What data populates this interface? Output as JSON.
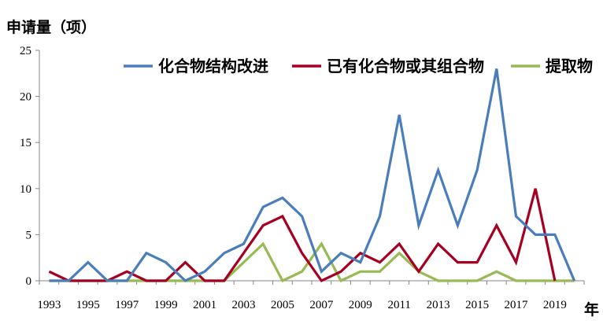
{
  "chart_data": {
    "type": "line",
    "ylabel": "申请量（项）",
    "xlabel": "年",
    "ylim": [
      0,
      25
    ],
    "yticks": [
      0,
      5,
      10,
      15,
      20,
      25
    ],
    "x": [
      1993,
      1994,
      1995,
      1996,
      1997,
      1998,
      1999,
      2000,
      2001,
      2002,
      2003,
      2004,
      2005,
      2006,
      2007,
      2008,
      2009,
      2010,
      2011,
      2012,
      2013,
      2014,
      2015,
      2016,
      2017,
      2018,
      2019,
      2020
    ],
    "x_tick_labels": [
      "1993",
      "1995",
      "1997",
      "1999",
      "2001",
      "2003",
      "2005",
      "2007",
      "2009",
      "2011",
      "2013",
      "2015",
      "2017",
      "2019"
    ],
    "legend_position": "top-right",
    "grid": false,
    "series": [
      {
        "name": "化合物结构改进",
        "color": "#4A7EBB",
        "values": [
          0,
          0,
          2,
          0,
          0,
          3,
          2,
          0,
          1,
          3,
          4,
          8,
          9,
          7,
          1,
          3,
          2,
          7,
          18,
          6,
          12,
          6,
          12,
          23,
          7,
          5,
          5,
          0
        ]
      },
      {
        "name": "已有化合物或其组合物",
        "color": "#A50021",
        "values": [
          1,
          0,
          0,
          0,
          1,
          0,
          0,
          2,
          0,
          0,
          3,
          6,
          7,
          3,
          0,
          1,
          3,
          2,
          4,
          1,
          4,
          2,
          2,
          6,
          2,
          10,
          0,
          null
        ]
      },
      {
        "name": "提取物",
        "color": "#98B954",
        "values": [
          0,
          0,
          0,
          0,
          0,
          0,
          0,
          0,
          0,
          0,
          2,
          4,
          0,
          1,
          4,
          0,
          1,
          1,
          3,
          1,
          0,
          0,
          0,
          1,
          0,
          0,
          0,
          0
        ]
      }
    ]
  }
}
